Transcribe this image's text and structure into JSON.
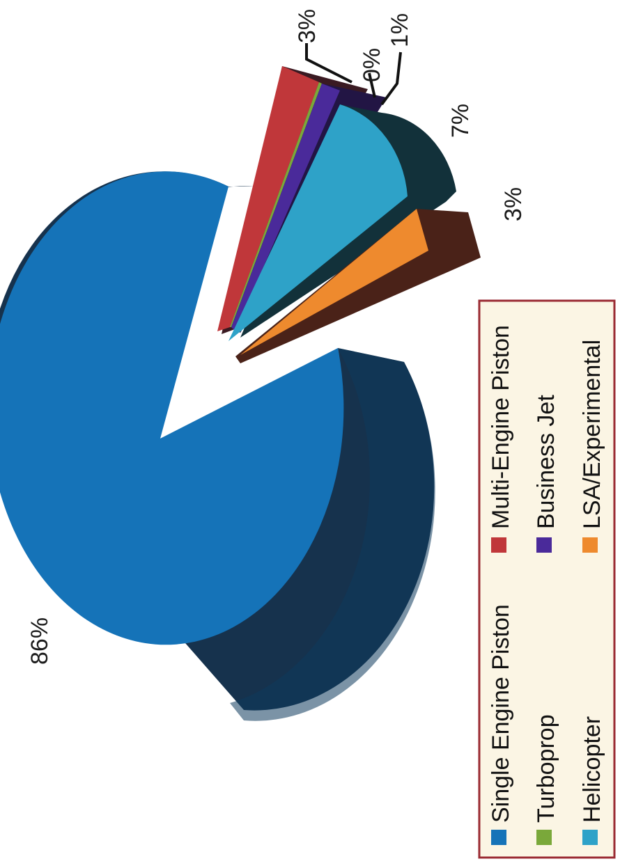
{
  "chart_data": {
    "type": "pie",
    "title": "",
    "orientation": "rotated-90-clockwise",
    "style": "3d-exploded",
    "series": [
      {
        "name": "Single Engine Piston",
        "value": 86,
        "label": "86%",
        "color": "#1573b8",
        "side": "#16324d",
        "exploded": false
      },
      {
        "name": "Multi-Engine Piston",
        "value": 3,
        "label": "3%",
        "color": "#c0373a",
        "side": "#3a1a22",
        "exploded": true
      },
      {
        "name": "Turboprop",
        "value": 0,
        "label": "0%",
        "color": "#7aa83a",
        "side": "#2a3a1a",
        "exploded": true
      },
      {
        "name": "Business Jet",
        "value": 1,
        "label": "1%",
        "color": "#4a2a9a",
        "side": "#221544",
        "exploded": true
      },
      {
        "name": "Helicopter",
        "value": 7,
        "label": "7%",
        "color": "#2ea2c8",
        "side": "#12313a",
        "exploded": true
      },
      {
        "name": "LSA/Experimental",
        "value": 3,
        "label": "3%",
        "color": "#ee8a2e",
        "side": "#4a2218",
        "exploded": true
      }
    ],
    "legend": {
      "position": "bottom",
      "border_color": "#9a2a32",
      "background": "#fbf5e4",
      "items": [
        {
          "name": "Single Engine Piston",
          "color": "#1573b8"
        },
        {
          "name": "Multi-Engine Piston",
          "color": "#c0373a"
        },
        {
          "name": "Turboprop",
          "color": "#7aa83a"
        },
        {
          "name": "Business Jet",
          "color": "#4a2a9a"
        },
        {
          "name": "Helicopter",
          "color": "#2ea2c8"
        },
        {
          "name": "LSA/Experimental",
          "color": "#ee8a2e"
        }
      ]
    }
  }
}
